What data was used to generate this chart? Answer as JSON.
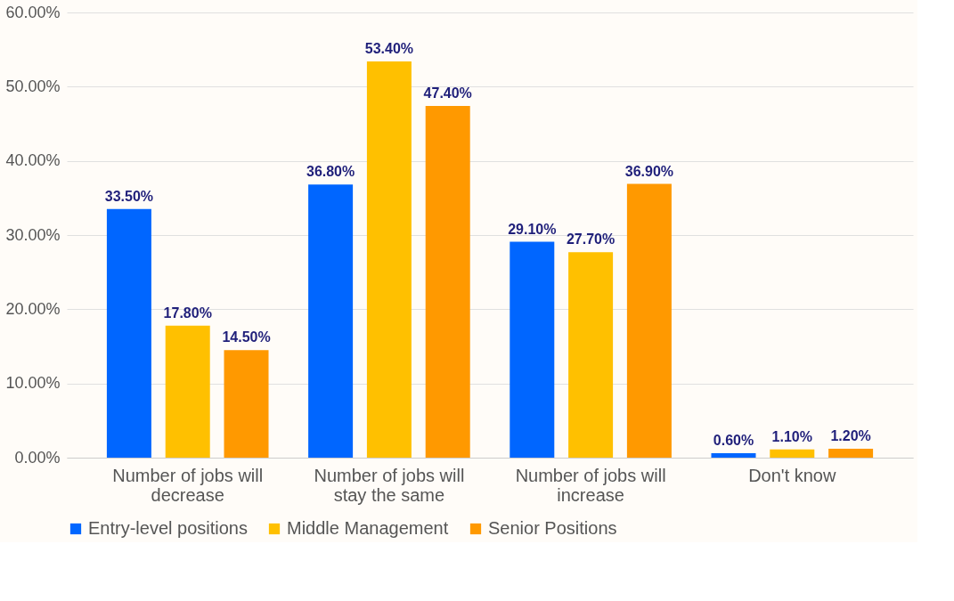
{
  "chart_data": {
    "type": "bar",
    "categories": [
      "Number of jobs will decrease",
      "Number of jobs will stay the same",
      "Number of jobs will increase",
      "Don't know"
    ],
    "series": [
      {
        "name": "Entry-level positions",
        "color": "#0066ff",
        "values": [
          33.5,
          36.8,
          29.1,
          0.6
        ],
        "value_labels": [
          "33.50%",
          "36.80%",
          "29.10%",
          "0.60%"
        ]
      },
      {
        "name": "Middle Management",
        "color": "#ffc000",
        "values": [
          17.8,
          53.4,
          27.7,
          1.1
        ],
        "value_labels": [
          "17.80%",
          "53.40%",
          "27.70%",
          "1.10%"
        ]
      },
      {
        "name": "Senior Positions",
        "color": "#ff9900",
        "values": [
          14.5,
          47.4,
          36.9,
          1.2
        ],
        "value_labels": [
          "14.50%",
          "47.40%",
          "36.90%",
          "1.20%"
        ]
      }
    ],
    "ylim": [
      0,
      60
    ],
    "yticks": [
      {
        "value": 0,
        "label": "0.00%"
      },
      {
        "value": 10,
        "label": "10.00%"
      },
      {
        "value": 20,
        "label": "20.00%"
      },
      {
        "value": 30,
        "label": "30.00%"
      },
      {
        "value": 40,
        "label": "40.00%"
      },
      {
        "value": 50,
        "label": "50.00%"
      },
      {
        "value": 60,
        "label": "60.00%"
      }
    ],
    "grid": "y",
    "legend": "bottom"
  }
}
